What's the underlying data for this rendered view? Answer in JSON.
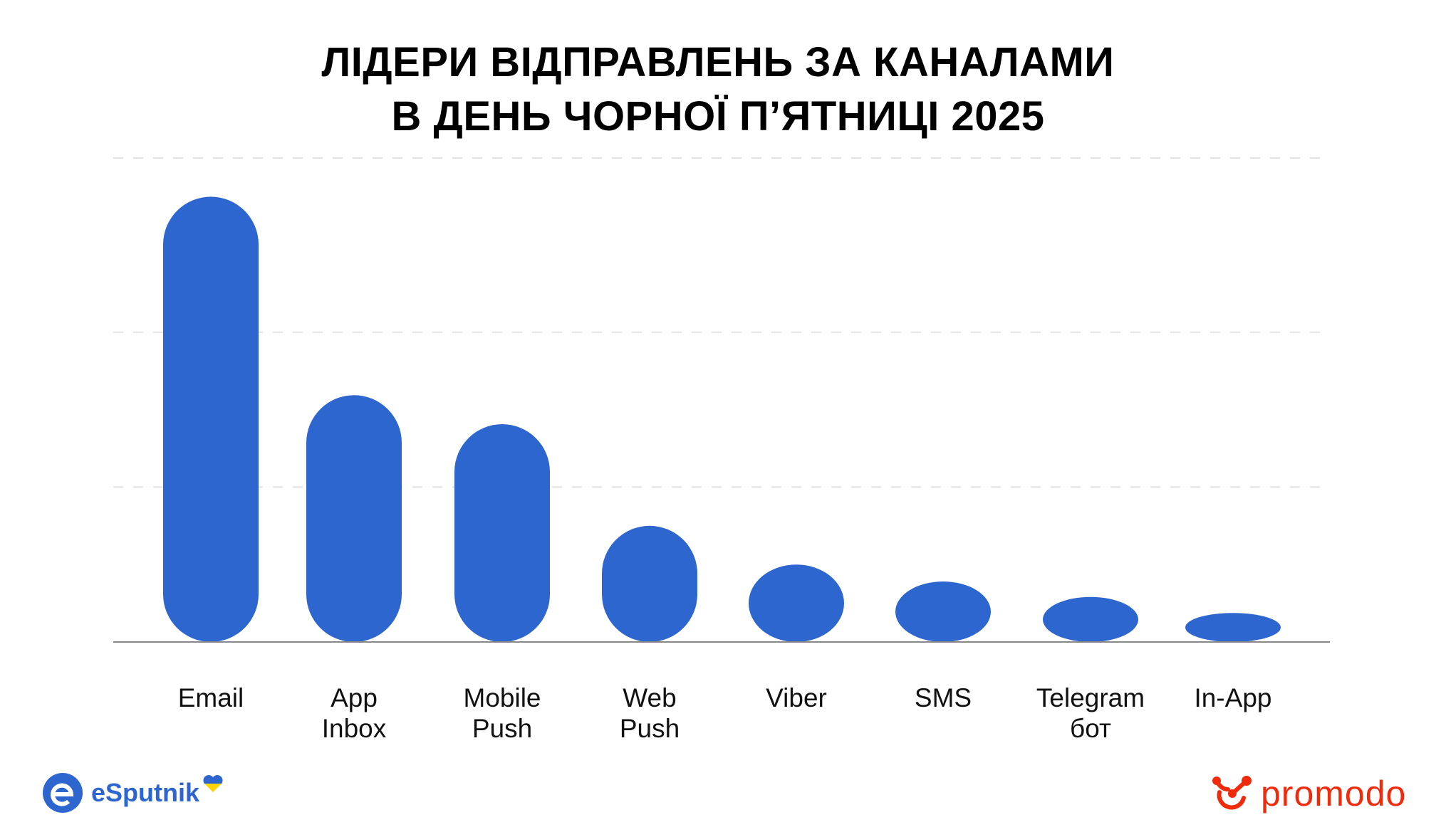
{
  "chart_data": {
    "type": "bar",
    "title": "ЛІДЕРИ ВІДПРАВЛЕНЬ ЗА КАНАЛАМИ В ДЕНЬ ЧОРНОЇ П’ЯТНИЦІ 2025",
    "title_lines": [
      "ЛІДЕРИ ВІДПРАВЛЕНЬ ЗА КАНАЛАМИ",
      "В ДЕНЬ ЧОРНОЇ П’ЯТНИЦІ 2025"
    ],
    "categories": [
      [
        "Email"
      ],
      [
        "App",
        "Inbox"
      ],
      [
        "Mobile",
        "Push"
      ],
      [
        "Web",
        "Push"
      ],
      [
        "Viber"
      ],
      [
        "SMS"
      ],
      [
        "Telegram",
        "бот"
      ],
      [
        "In-App"
      ]
    ],
    "values": [
      92,
      51,
      45,
      24,
      16,
      12.5,
      9.3,
      6
    ],
    "gridlines": [
      32,
      64,
      100
    ],
    "ylim": [
      0,
      100
    ],
    "grid": true,
    "xlabel": "",
    "ylabel": "",
    "bar_color": "#2d66cf"
  },
  "logos": {
    "left": "eSputnik",
    "right": "promodo"
  }
}
